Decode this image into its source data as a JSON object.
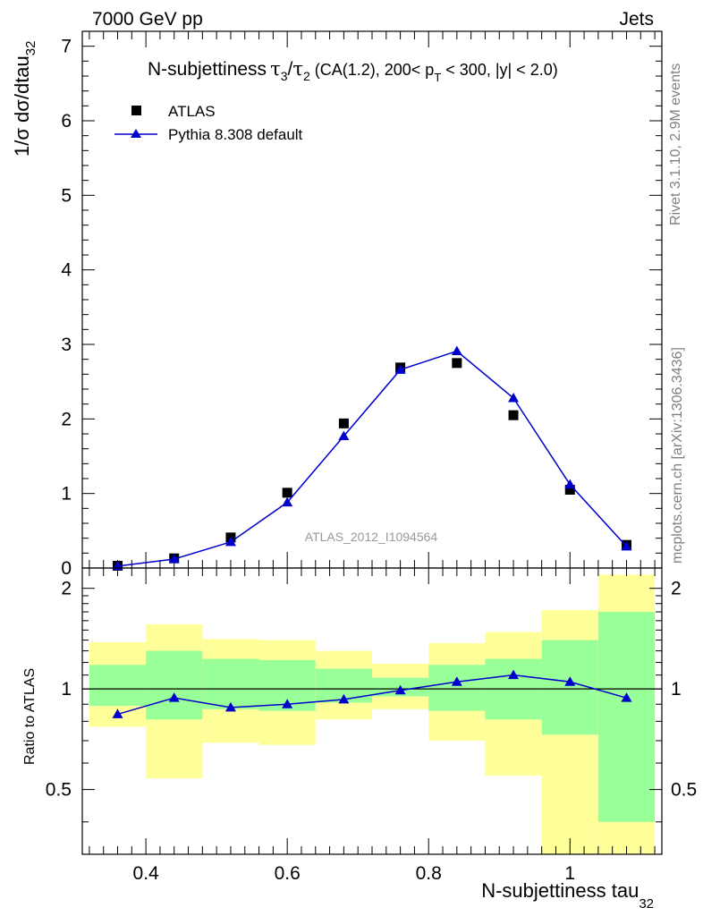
{
  "header": {
    "left": "7000 GeV pp",
    "right": "Jets"
  },
  "side_labels": {
    "rivet": "Rivet 3.1.10,  2.9M events",
    "mcplots": "mcplots.cern.ch [arXiv:1306.3436]"
  },
  "colors": {
    "mc": "#0000cc",
    "data": "#000000",
    "band_inner": "#99ff99",
    "band_outer": "#ffff99",
    "watermark": "#999999"
  },
  "chart_data": [
    {
      "type": "scatter",
      "panel": "main",
      "title": {
        "main": "N-subjettiness",
        "tau_num": "τ",
        "tau_num_sub": "3",
        "slash": "/",
        "tau_den": "τ",
        "tau_den_sub": "2",
        "cuts_a": " (CA(1.2), 200< p",
        "cuts_sub": "T",
        "cuts_b": " < 300, |y| < 2.0)"
      },
      "ylabel": {
        "main": "1/σ dσ/dtau",
        "sub": "32"
      },
      "watermark": "ATLAS_2012_I1094564",
      "xlim": [
        0.31,
        1.13
      ],
      "ylim": [
        0,
        7.2
      ],
      "y_ticks": [
        0,
        1,
        2,
        3,
        4,
        5,
        6,
        7
      ],
      "y_tick_labels": [
        "0",
        "1",
        "2",
        "3",
        "4",
        "5",
        "6",
        "7"
      ],
      "legend_position": "top-left",
      "series": [
        {
          "name": "ATLAS",
          "marker": "square",
          "x": [
            0.36,
            0.44,
            0.52,
            0.6,
            0.68,
            0.76,
            0.84,
            0.92,
            1.0,
            1.08
          ],
          "values": [
            0.03,
            0.13,
            0.41,
            1.01,
            1.94,
            2.69,
            2.75,
            2.05,
            1.05,
            0.31
          ]
        },
        {
          "name": "Pythia 8.308 default",
          "marker": "triangle",
          "x": [
            0.36,
            0.44,
            0.52,
            0.6,
            0.68,
            0.76,
            0.84,
            0.92,
            1.0,
            1.08
          ],
          "values": [
            0.025,
            0.12,
            0.35,
            0.88,
            1.77,
            2.66,
            2.91,
            2.28,
            1.12,
            0.29
          ]
        }
      ]
    },
    {
      "type": "line",
      "panel": "ratio",
      "ylabel": "Ratio to ATLAS",
      "xlabel": {
        "main": "N-subjettiness tau",
        "sub": "32"
      },
      "xlim": [
        0.31,
        1.13
      ],
      "ylim": [
        0.32,
        2.3
      ],
      "log_y": true,
      "x_ticks": [
        0.4,
        0.6,
        0.8,
        1.0
      ],
      "x_tick_labels": [
        "0.4",
        "0.6",
        "0.8",
        "1"
      ],
      "y_ticks": [
        0.5,
        1,
        2
      ],
      "y_tick_labels": [
        "0.5",
        "1",
        "2"
      ],
      "bands": [
        {
          "x_low": 0.32,
          "x_high": 0.4,
          "inner": [
            0.89,
            1.18
          ],
          "outer": [
            0.77,
            1.38
          ]
        },
        {
          "x_low": 0.4,
          "x_high": 0.48,
          "inner": [
            0.81,
            1.3
          ],
          "outer": [
            0.54,
            1.56
          ]
        },
        {
          "x_low": 0.48,
          "x_high": 0.56,
          "inner": [
            0.87,
            1.23
          ],
          "outer": [
            0.69,
            1.41
          ]
        },
        {
          "x_low": 0.56,
          "x_high": 0.64,
          "inner": [
            0.86,
            1.22
          ],
          "outer": [
            0.68,
            1.4
          ]
        },
        {
          "x_low": 0.64,
          "x_high": 0.72,
          "inner": [
            0.91,
            1.15
          ],
          "outer": [
            0.81,
            1.3
          ]
        },
        {
          "x_low": 0.72,
          "x_high": 0.8,
          "inner": [
            0.95,
            1.08
          ],
          "outer": [
            0.87,
            1.19
          ]
        },
        {
          "x_low": 0.8,
          "x_high": 0.88,
          "inner": [
            0.86,
            1.18
          ],
          "outer": [
            0.7,
            1.37
          ]
        },
        {
          "x_low": 0.88,
          "x_high": 0.96,
          "inner": [
            0.81,
            1.23
          ],
          "outer": [
            0.55,
            1.48
          ]
        },
        {
          "x_low": 0.96,
          "x_high": 1.04,
          "inner": [
            0.73,
            1.4
          ],
          "outer": [
            0.3,
            1.72
          ]
        },
        {
          "x_low": 1.04,
          "x_high": 1.12,
          "inner": [
            0.4,
            1.7
          ],
          "outer": [
            0.32,
            2.2
          ]
        }
      ],
      "series": [
        {
          "name": "Pythia 8.308 default",
          "x": [
            0.36,
            0.44,
            0.52,
            0.6,
            0.68,
            0.76,
            0.84,
            0.92,
            1.0,
            1.08
          ],
          "values": [
            0.84,
            0.94,
            0.88,
            0.9,
            0.93,
            0.99,
            1.05,
            1.1,
            1.05,
            0.94
          ]
        }
      ]
    }
  ]
}
